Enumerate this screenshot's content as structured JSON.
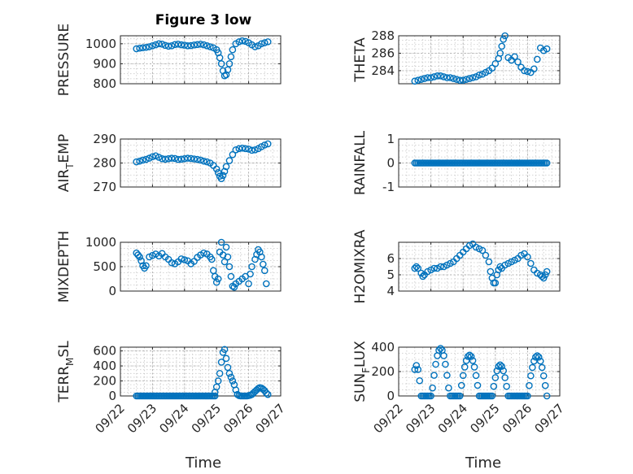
{
  "figure": {
    "title": "Figure 3 low"
  },
  "chart_data": [
    {
      "type": "scatter",
      "id": "pressure",
      "ylabel": "PRESSURE",
      "ylim": [
        800,
        1040
      ],
      "yticks": [
        800,
        900,
        1000
      ],
      "ytick_labels": [
        "800",
        "900",
        "1000"
      ],
      "xlim": [
        0,
        5
      ],
      "grid": true,
      "marker": "circle",
      "series": [
        {
          "name": "PRESSURE",
          "x": [
            0.5,
            0.6,
            0.7,
            0.8,
            0.9,
            1.0,
            1.1,
            1.2,
            1.3,
            1.4,
            1.5,
            1.6,
            1.7,
            1.8,
            1.9,
            2.0,
            2.1,
            2.2,
            2.3,
            2.4,
            2.5,
            2.6,
            2.7,
            2.8,
            2.9,
            3.0,
            3.05,
            3.1,
            3.15,
            3.2,
            3.25,
            3.3,
            3.35,
            3.4,
            3.45,
            3.5,
            3.6,
            3.7,
            3.8,
            3.9,
            4.0,
            4.1,
            4.2,
            4.3,
            4.4,
            4.5,
            4.6
          ],
          "y": [
            975,
            978,
            980,
            982,
            985,
            990,
            995,
            1000,
            998,
            992,
            988,
            990,
            996,
            998,
            995,
            993,
            990,
            991,
            994,
            996,
            998,
            995,
            990,
            985,
            980,
            970,
            955,
            930,
            900,
            865,
            840,
            845,
            870,
            900,
            935,
            970,
            1000,
            1010,
            1015,
            1012,
            1005,
            995,
            985,
            990,
            1000,
            1005,
            1010
          ]
        }
      ]
    },
    {
      "type": "scatter",
      "id": "theta",
      "ylabel": "THETA",
      "ylim": [
        282.5,
        288
      ],
      "yticks": [
        284,
        286,
        288
      ],
      "ytick_labels": [
        "284",
        "286",
        "288"
      ],
      "xlim": [
        0,
        5
      ],
      "grid": true,
      "marker": "circle",
      "series": [
        {
          "name": "THETA",
          "x": [
            0.5,
            0.6,
            0.7,
            0.8,
            0.9,
            1.0,
            1.1,
            1.2,
            1.3,
            1.4,
            1.5,
            1.6,
            1.7,
            1.8,
            1.9,
            2.0,
            2.1,
            2.2,
            2.3,
            2.4,
            2.5,
            2.6,
            2.7,
            2.8,
            2.9,
            3.0,
            3.1,
            3.15,
            3.2,
            3.25,
            3.3,
            3.4,
            3.5,
            3.6,
            3.7,
            3.8,
            3.9,
            4.0,
            4.1,
            4.2,
            4.3,
            4.4,
            4.5,
            4.6
          ],
          "y": [
            282.8,
            282.9,
            283.0,
            283.1,
            283.2,
            283.2,
            283.3,
            283.4,
            283.4,
            283.3,
            283.2,
            283.2,
            283.1,
            283.0,
            282.9,
            282.9,
            283.0,
            283.1,
            283.2,
            283.3,
            283.5,
            283.6,
            283.8,
            284.0,
            284.3,
            284.8,
            285.4,
            286.0,
            286.8,
            287.6,
            288.0,
            285.5,
            285.2,
            285.6,
            285.0,
            284.4,
            284.0,
            283.9,
            283.8,
            284.2,
            285.3,
            286.6,
            286.3,
            286.5
          ]
        }
      ]
    },
    {
      "type": "scatter",
      "id": "air_temp",
      "ylabel": "AIR_TEMP",
      "ylabel_main": "AIR",
      "ylabel_sub": "T",
      "ylabel_rest": "EMP",
      "ylim": [
        270,
        290
      ],
      "yticks": [
        270,
        280,
        290
      ],
      "ytick_labels": [
        "270",
        "280",
        "290"
      ],
      "xlim": [
        0,
        5
      ],
      "grid": true,
      "marker": "circle",
      "series": [
        {
          "name": "AIR_TEMP",
          "x": [
            0.5,
            0.6,
            0.7,
            0.8,
            0.9,
            1.0,
            1.1,
            1.2,
            1.3,
            1.4,
            1.5,
            1.6,
            1.7,
            1.8,
            1.9,
            2.0,
            2.1,
            2.2,
            2.3,
            2.4,
            2.5,
            2.6,
            2.7,
            2.8,
            2.9,
            3.0,
            3.05,
            3.1,
            3.15,
            3.2,
            3.25,
            3.3,
            3.4,
            3.5,
            3.6,
            3.7,
            3.8,
            3.9,
            4.0,
            4.1,
            4.2,
            4.3,
            4.4,
            4.5,
            4.6
          ],
          "y": [
            280.5,
            280.8,
            281.2,
            281.5,
            282.0,
            282.6,
            283.0,
            282.4,
            281.8,
            281.6,
            281.8,
            282.0,
            281.9,
            281.5,
            281.6,
            281.8,
            282.0,
            281.9,
            281.7,
            281.5,
            281.2,
            280.8,
            280.5,
            280.0,
            279.0,
            277.5,
            276.0,
            274.5,
            273.5,
            274.8,
            276.5,
            278.5,
            281.0,
            283.5,
            285.5,
            286.0,
            286.2,
            286.0,
            285.8,
            285.3,
            285.5,
            286.0,
            286.8,
            287.5,
            288.0
          ]
        }
      ]
    },
    {
      "type": "scatter",
      "id": "rainfall",
      "ylabel": "RAINFALL",
      "ylim": [
        -1,
        1
      ],
      "yticks": [
        -1,
        0,
        1
      ],
      "ytick_labels": [
        "-1",
        "0",
        "1"
      ],
      "xlim": [
        0,
        5
      ],
      "grid": true,
      "marker": "circle",
      "series": [
        {
          "name": "RAINFALL",
          "x_range": [
            0.5,
            4.6
          ],
          "x_step": 0.05,
          "y_const": 0
        }
      ]
    },
    {
      "type": "scatter",
      "id": "mixdepth",
      "ylabel": "MIXDEPTH",
      "ylim": [
        0,
        1000
      ],
      "yticks": [
        0,
        500,
        1000
      ],
      "ytick_labels": [
        "0",
        "500",
        "1000"
      ],
      "xlim": [
        0,
        5
      ],
      "grid": true,
      "marker": "circle",
      "series": [
        {
          "name": "MIXDEPTH",
          "x": [
            0.5,
            0.55,
            0.6,
            0.65,
            0.7,
            0.75,
            0.8,
            0.9,
            1.0,
            1.1,
            1.2,
            1.3,
            1.4,
            1.5,
            1.6,
            1.7,
            1.8,
            1.9,
            2.0,
            2.1,
            2.2,
            2.3,
            2.4,
            2.5,
            2.6,
            2.7,
            2.8,
            2.85,
            2.9,
            2.95,
            3.0,
            3.05,
            3.1,
            3.15,
            3.2,
            3.25,
            3.3,
            3.35,
            3.4,
            3.45,
            3.5,
            3.55,
            3.6,
            3.7,
            3.8,
            3.9,
            4.0,
            4.05,
            4.1,
            4.2,
            4.25,
            4.3,
            4.35,
            4.4,
            4.45,
            4.5,
            4.55
          ],
          "y": [
            780,
            740,
            700,
            620,
            520,
            470,
            520,
            700,
            730,
            760,
            720,
            770,
            700,
            650,
            580,
            560,
            600,
            660,
            640,
            620,
            560,
            610,
            690,
            740,
            780,
            760,
            700,
            650,
            420,
            300,
            180,
            250,
            800,
            1000,
            740,
            600,
            900,
            700,
            500,
            300,
            100,
            80,
            150,
            200,
            250,
            300,
            150,
            350,
            500,
            650,
            750,
            850,
            800,
            700,
            550,
            420,
            150
          ]
        }
      ]
    },
    {
      "type": "scatter",
      "id": "h2omixra",
      "ylabel": "H2OMIXRA",
      "ylim": [
        4,
        7
      ],
      "yticks": [
        4,
        5,
        6
      ],
      "ytick_labels": [
        "4",
        "5",
        "6"
      ],
      "xlim": [
        0,
        5
      ],
      "grid": true,
      "marker": "circle",
      "series": [
        {
          "name": "H2OMIXRA",
          "x": [
            0.5,
            0.55,
            0.6,
            0.7,
            0.75,
            0.8,
            0.9,
            1.0,
            1.1,
            1.2,
            1.3,
            1.4,
            1.5,
            1.6,
            1.7,
            1.8,
            1.9,
            2.0,
            2.1,
            2.2,
            2.3,
            2.4,
            2.5,
            2.6,
            2.7,
            2.8,
            2.85,
            2.9,
            2.95,
            3.0,
            3.05,
            3.1,
            3.15,
            3.2,
            3.3,
            3.4,
            3.5,
            3.6,
            3.7,
            3.8,
            3.9,
            4.0,
            4.1,
            4.2,
            4.3,
            4.4,
            4.45,
            4.5,
            4.55,
            4.6
          ],
          "y": [
            5.4,
            5.5,
            5.4,
            5.1,
            4.9,
            5.0,
            5.2,
            5.3,
            5.4,
            5.4,
            5.5,
            5.5,
            5.6,
            5.7,
            5.8,
            6.0,
            6.2,
            6.4,
            6.6,
            6.8,
            6.9,
            6.7,
            6.6,
            6.5,
            6.2,
            5.8,
            5.2,
            4.8,
            4.5,
            4.5,
            5.0,
            5.3,
            5.5,
            5.4,
            5.6,
            5.7,
            5.8,
            5.9,
            6.0,
            6.2,
            6.3,
            6.1,
            5.7,
            5.3,
            5.1,
            5.0,
            4.9,
            4.8,
            5.0,
            5.2
          ]
        }
      ]
    },
    {
      "type": "scatter",
      "id": "terr_msl",
      "ylabel": "TERR_MSL",
      "ylabel_main": "TERR",
      "ylabel_sub": "M",
      "ylabel_rest": "SL",
      "ylim": [
        0,
        650
      ],
      "yticks": [
        0,
        200,
        400,
        600
      ],
      "ytick_labels": [
        "0",
        "200",
        "400",
        "600"
      ],
      "xlim": [
        0,
        5
      ],
      "grid": true,
      "marker": "circle",
      "series": [
        {
          "name": "TERR_MSL",
          "x": [
            2.95,
            3.0,
            3.05,
            3.1,
            3.15,
            3.2,
            3.25,
            3.3,
            3.35,
            3.4,
            3.45,
            3.5,
            3.55,
            3.6,
            3.65,
            3.7,
            3.75,
            3.8,
            3.85,
            3.9,
            3.95,
            4.0,
            4.05,
            4.1,
            4.15,
            4.2,
            4.25,
            4.3,
            4.35,
            4.4,
            4.45,
            4.5,
            4.55,
            4.6
          ],
          "y": [
            50,
            120,
            200,
            300,
            450,
            580,
            620,
            500,
            380,
            300,
            250,
            200,
            150,
            80,
            20,
            5,
            0,
            0,
            0,
            0,
            0,
            5,
            10,
            20,
            40,
            60,
            80,
            100,
            110,
            105,
            90,
            70,
            40,
            20
          ],
          "baseline_range": [
            0.5,
            2.95
          ],
          "baseline_step": 0.05,
          "baseline_y": 0
        }
      ]
    },
    {
      "type": "scatter",
      "id": "sun_flux",
      "ylabel": "SUN_FLUX",
      "ylabel_main": "SUN",
      "ylabel_sub": "F",
      "ylabel_rest": "LUX",
      "ylim": [
        0,
        400
      ],
      "yticks": [
        0,
        200,
        400
      ],
      "ytick_labels": [
        "0",
        "200",
        "400"
      ],
      "xlim": [
        0,
        5
      ],
      "grid": true,
      "marker": "circle",
      "series": [
        {
          "name": "SUN_FLUX",
          "peaks": [
            [
              0.55,
              250,
              0.15
            ],
            [
              1.3,
              390,
              0.28
            ],
            [
              2.2,
              335,
              0.3
            ],
            [
              3.15,
              255,
              0.25
            ],
            [
              4.3,
              330,
              0.3
            ]
          ],
          "x_range": [
            0.5,
            4.6
          ],
          "x_step": 0.05
        }
      ]
    }
  ],
  "xaxis": {
    "tick_labels": [
      "09/22",
      "09/23",
      "09/24",
      "09/25",
      "09/26",
      "09/27"
    ],
    "xlabel": "Time"
  }
}
